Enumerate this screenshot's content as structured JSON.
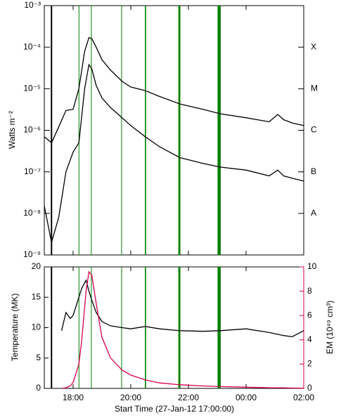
{
  "chart_data": [
    {
      "type": "line",
      "ylabel": "Watts m⁻²",
      "log_y": true,
      "ylim": [
        1e-09,
        0.001
      ],
      "yticks": [
        {
          "value": 1e-09,
          "label": "10⁻⁹"
        },
        {
          "value": 1e-08,
          "label": "10⁻⁸"
        },
        {
          "value": 1e-07,
          "label": "10⁻⁷"
        },
        {
          "value": 1e-06,
          "label": "10⁻⁶"
        },
        {
          "value": 1e-05,
          "label": "10⁻⁵"
        },
        {
          "value": 0.0001,
          "label": "10⁻⁴"
        },
        {
          "value": 0.001,
          "label": "10⁻³"
        }
      ],
      "flare_classes": [
        {
          "value": 0.0001,
          "label": "X"
        },
        {
          "value": 1e-05,
          "label": "M"
        },
        {
          "value": 1e-06,
          "label": "C"
        },
        {
          "value": 1e-07,
          "label": "B"
        },
        {
          "value": 1e-08,
          "label": "A"
        }
      ],
      "xlim": [
        0,
        9
      ],
      "marker": 0.25,
      "marker_color": "#000000",
      "intervals": [
        [
          1.19,
          1.21
        ],
        [
          1.62,
          1.64
        ],
        [
          2.67,
          2.69
        ],
        [
          3.49,
          3.53
        ],
        [
          4.65,
          4.72
        ],
        [
          6.01,
          6.12
        ]
      ],
      "interval_color": "#008000",
      "x": [
        0,
        0.25,
        0.5,
        0.75,
        1.0,
        1.2,
        1.4,
        1.55,
        1.65,
        1.8,
        2.0,
        2.3,
        2.7,
        3.0,
        3.5,
        4.0,
        4.7,
        5.5,
        6.1,
        7.0,
        7.8,
        8.1,
        8.3,
        8.6,
        9.0
      ],
      "series": [
        {
          "color": "#000000",
          "values": [
            7e-07,
            5e-07,
            1.2e-06,
            3e-06,
            3.2e-06,
            1e-05,
            8e-05,
            0.00017,
            0.00016,
            0.0001,
            5e-05,
            2.8e-05,
            1.5e-05,
            1.1e-05,
            9e-06,
            6.5e-06,
            4.3e-06,
            3.2e-06,
            2.5e-06,
            2e-06,
            1.6e-06,
            2.4e-06,
            1.8e-06,
            1.5e-06,
            1.3e-06
          ]
        },
        {
          "color": "#000000",
          "values": [
            1.5e-08,
            2e-09,
            8e-09,
            1e-07,
            3e-07,
            5e-07,
            1e-05,
            3.8e-05,
            3e-05,
            1.2e-05,
            6e-06,
            3.5e-06,
            2e-06,
            1.3e-06,
            7e-07,
            4e-07,
            2.2e-07,
            1.6e-07,
            1.3e-07,
            1.1e-07,
            8e-08,
            1.1e-07,
            8e-08,
            7e-08,
            6e-08
          ]
        }
      ]
    },
    {
      "type": "line",
      "ylabel": "Temperature (MK)",
      "y2label": "EM (10⁴⁹ cm³)",
      "y2color": "#d6004a",
      "xlabel": "Start Time (27-Jan-12 17:00:00)",
      "ylim": [
        0,
        20
      ],
      "yticks": [
        0,
        5,
        10,
        15,
        20
      ],
      "y2lim": [
        0,
        10
      ],
      "y2ticks": [
        0,
        2,
        4,
        6,
        8,
        10
      ],
      "xlim": [
        0,
        9
      ],
      "xticks": [
        {
          "value": 1,
          "label": "18:00"
        },
        {
          "value": 3,
          "label": "20:00"
        },
        {
          "value": 5,
          "label": "22:00"
        },
        {
          "value": 7,
          "label": "00:00"
        },
        {
          "value": 9,
          "label": "02:00"
        }
      ],
      "x": [
        0.6,
        0.75,
        0.9,
        1.0,
        1.2,
        1.3,
        1.45,
        1.55,
        1.65,
        1.8,
        2.0,
        2.3,
        2.7,
        3.0,
        3.5,
        4.0,
        4.7,
        5.5,
        6.1,
        7.0,
        7.8,
        8.3,
        8.6,
        9.0
      ],
      "series": [
        {
          "color": "#000000",
          "values": [
            9.5,
            12.5,
            11.5,
            12,
            15,
            16.5,
            17.8,
            16,
            14.5,
            12.5,
            11,
            10.3,
            10,
            9.8,
            10.2,
            9.8,
            9.5,
            9.4,
            9.5,
            9.8,
            9.2,
            8.7,
            8.5,
            9.5
          ]
        },
        {
          "color": "#d6004a",
          "axis": "y2",
          "values": [
            0,
            0.05,
            0.2,
            0.5,
            2,
            4,
            8,
            9.6,
            9.3,
            7,
            4.2,
            2.5,
            1.5,
            1.1,
            0.7,
            0.45,
            0.3,
            0.2,
            0.15,
            0.1,
            0.05,
            0.05,
            0.03,
            0.02
          ]
        }
      ]
    }
  ]
}
